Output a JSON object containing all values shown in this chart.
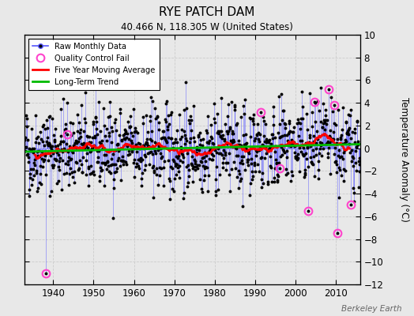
{
  "title": "RYE PATCH DAM",
  "subtitle": "40.466 N, 118.305 W (United States)",
  "ylabel": "Temperature Anomaly (°C)",
  "watermark": "Berkeley Earth",
  "xlim": [
    1933,
    2016
  ],
  "ylim": [
    -12,
    10
  ],
  "yticks": [
    -12,
    -10,
    -8,
    -6,
    -4,
    -2,
    0,
    2,
    4,
    6,
    8,
    10
  ],
  "xticks": [
    1940,
    1950,
    1960,
    1970,
    1980,
    1990,
    2000,
    2010
  ],
  "start_year": 1933,
  "end_year": 2015,
  "background_color": "#e8e8e8",
  "plot_bg_color": "#e8e8e8",
  "raw_line_color": "#5555ff",
  "raw_marker_color": "#000000",
  "moving_avg_color": "#ff0000",
  "trend_color": "#00bb00",
  "qc_fail_color": "#ff44cc",
  "seed": 42
}
